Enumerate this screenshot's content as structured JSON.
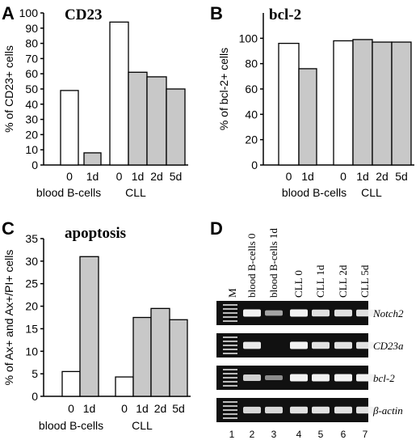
{
  "colors": {
    "white_bar": "#ffffff",
    "grey_bar": "#c8c8c8",
    "gel_bg": "#111111",
    "band": "#f2f2f2"
  },
  "chart_data": [
    {
      "panel": "A",
      "type": "bar",
      "title": "CD23",
      "ylabel": "% of CD23+ cells",
      "ylim": [
        0,
        100
      ],
      "yticks": [
        0,
        10,
        20,
        30,
        40,
        50,
        60,
        70,
        80,
        90,
        100
      ],
      "groups": [
        {
          "name": "blood B-cells",
          "categories": [
            "0",
            "1d"
          ],
          "values": [
            49,
            8
          ],
          "fill": [
            "white",
            "grey"
          ]
        },
        {
          "name": "CLL",
          "categories": [
            "0",
            "1d",
            "2d",
            "5d"
          ],
          "values": [
            94,
            61,
            58,
            50
          ],
          "fill": [
            "white",
            "grey",
            "grey",
            "grey"
          ]
        }
      ]
    },
    {
      "panel": "B",
      "type": "bar",
      "title": "bcl-2",
      "ylabel": "% of bcl-2+ cells",
      "ylim": [
        0,
        120
      ],
      "yticks": [
        0,
        20,
        40,
        60,
        80,
        100
      ],
      "groups": [
        {
          "name": "blood B-cells",
          "categories": [
            "0",
            "1d"
          ],
          "values": [
            96,
            76
          ],
          "fill": [
            "white",
            "grey"
          ]
        },
        {
          "name": "CLL",
          "categories": [
            "0",
            "1d",
            "2d",
            "5d"
          ],
          "values": [
            98,
            99,
            97,
            97
          ],
          "fill": [
            "white",
            "grey",
            "grey",
            "grey"
          ]
        }
      ]
    },
    {
      "panel": "C",
      "type": "bar",
      "title": "apoptosis",
      "ylabel": "% of Ax+ and Ax+/PI+ cells",
      "ylim": [
        0,
        35
      ],
      "yticks": [
        0,
        5,
        10,
        15,
        20,
        25,
        30,
        35
      ],
      "groups": [
        {
          "name": "blood B-cells",
          "categories": [
            "0",
            "1d"
          ],
          "values": [
            5.5,
            31
          ],
          "fill": [
            "white",
            "grey"
          ]
        },
        {
          "name": "CLL",
          "categories": [
            "0",
            "1d",
            "2d",
            "5d"
          ],
          "values": [
            4.3,
            17.5,
            19.5,
            17
          ],
          "fill": [
            "white",
            "grey",
            "grey",
            "grey"
          ]
        }
      ]
    }
  ],
  "gel": {
    "panel": "D",
    "marker_label": "M",
    "lanes": [
      "blood B-cells 0",
      "blood B-cells 1d",
      "CLL 0",
      "CLL 1d",
      "CLL 2d",
      "CLL 5d"
    ],
    "lane_numbers": [
      "1",
      "2",
      "3",
      "4",
      "5",
      "6",
      "7"
    ],
    "genes": [
      {
        "name": "Notch2",
        "intensity": [
          1,
          0.55,
          1,
          0.9,
          0.9,
          0.9
        ]
      },
      {
        "name": "CD23a",
        "intensity": [
          0.95,
          0.0,
          1,
          0.9,
          0.9,
          0.9
        ]
      },
      {
        "name": "bcl-2",
        "intensity": [
          0.8,
          0.4,
          1,
          1,
          1,
          1
        ]
      },
      {
        "name": "β-actin",
        "intensity": [
          0.85,
          0.85,
          0.9,
          0.9,
          0.9,
          0.9
        ]
      }
    ]
  }
}
